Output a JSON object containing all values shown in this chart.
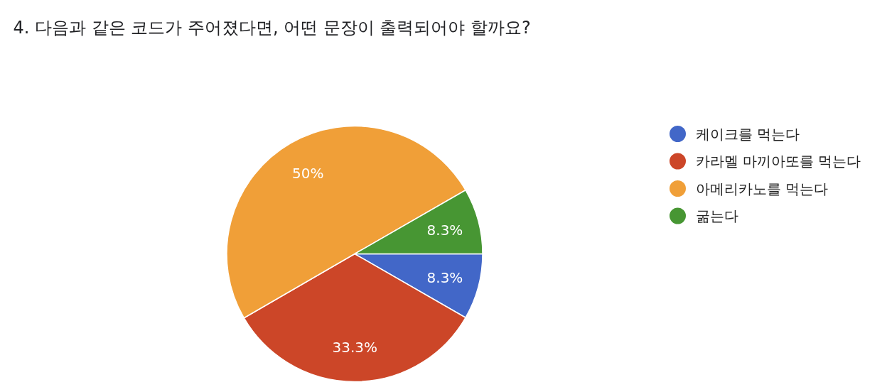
{
  "chart_data": {
    "type": "pie",
    "title": "4. 다음과 같은 코드가 주어졌다면, 어떤 문장이 출력되어야 할까요?",
    "categories": [
      "케이크를 먹는다",
      "카라멜 마끼아또를 먹는다",
      "아메리카노를 먹는다",
      "굶는다"
    ],
    "values": [
      8.3,
      33.3,
      50,
      8.3
    ],
    "colors": [
      "#4267c8",
      "#cc4628",
      "#f09f38",
      "#479633"
    ],
    "value_labels": [
      "8.3%",
      "33.3%",
      "50%",
      "8.3%"
    ],
    "legend": "right"
  }
}
